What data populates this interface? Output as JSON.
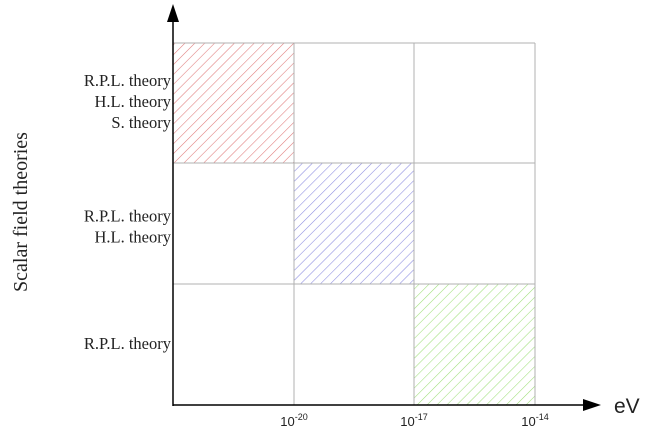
{
  "y_axis": {
    "label": "Scalar field theories"
  },
  "x_axis": {
    "unit": "eV",
    "ticks": [
      {
        "base": "10",
        "exp": "-20"
      },
      {
        "base": "10",
        "exp": "-17"
      },
      {
        "base": "10",
        "exp": "-14"
      }
    ]
  },
  "rows": [
    {
      "labels": [
        "R.P.L. theory",
        "H.L. theory",
        "S. theory"
      ],
      "hatched_column": 0,
      "color": "#e07a7a"
    },
    {
      "labels": [
        "R.P.L. theory",
        "H.L. theory"
      ],
      "hatched_column": 1,
      "color": "#8a8ae0"
    },
    {
      "labels": [
        "R.P.L. theory"
      ],
      "hatched_column": 2,
      "color": "#9fe07a"
    }
  ],
  "colors": {
    "grid": "#b0b0b0",
    "axis": "#000000",
    "text": "#222222"
  }
}
